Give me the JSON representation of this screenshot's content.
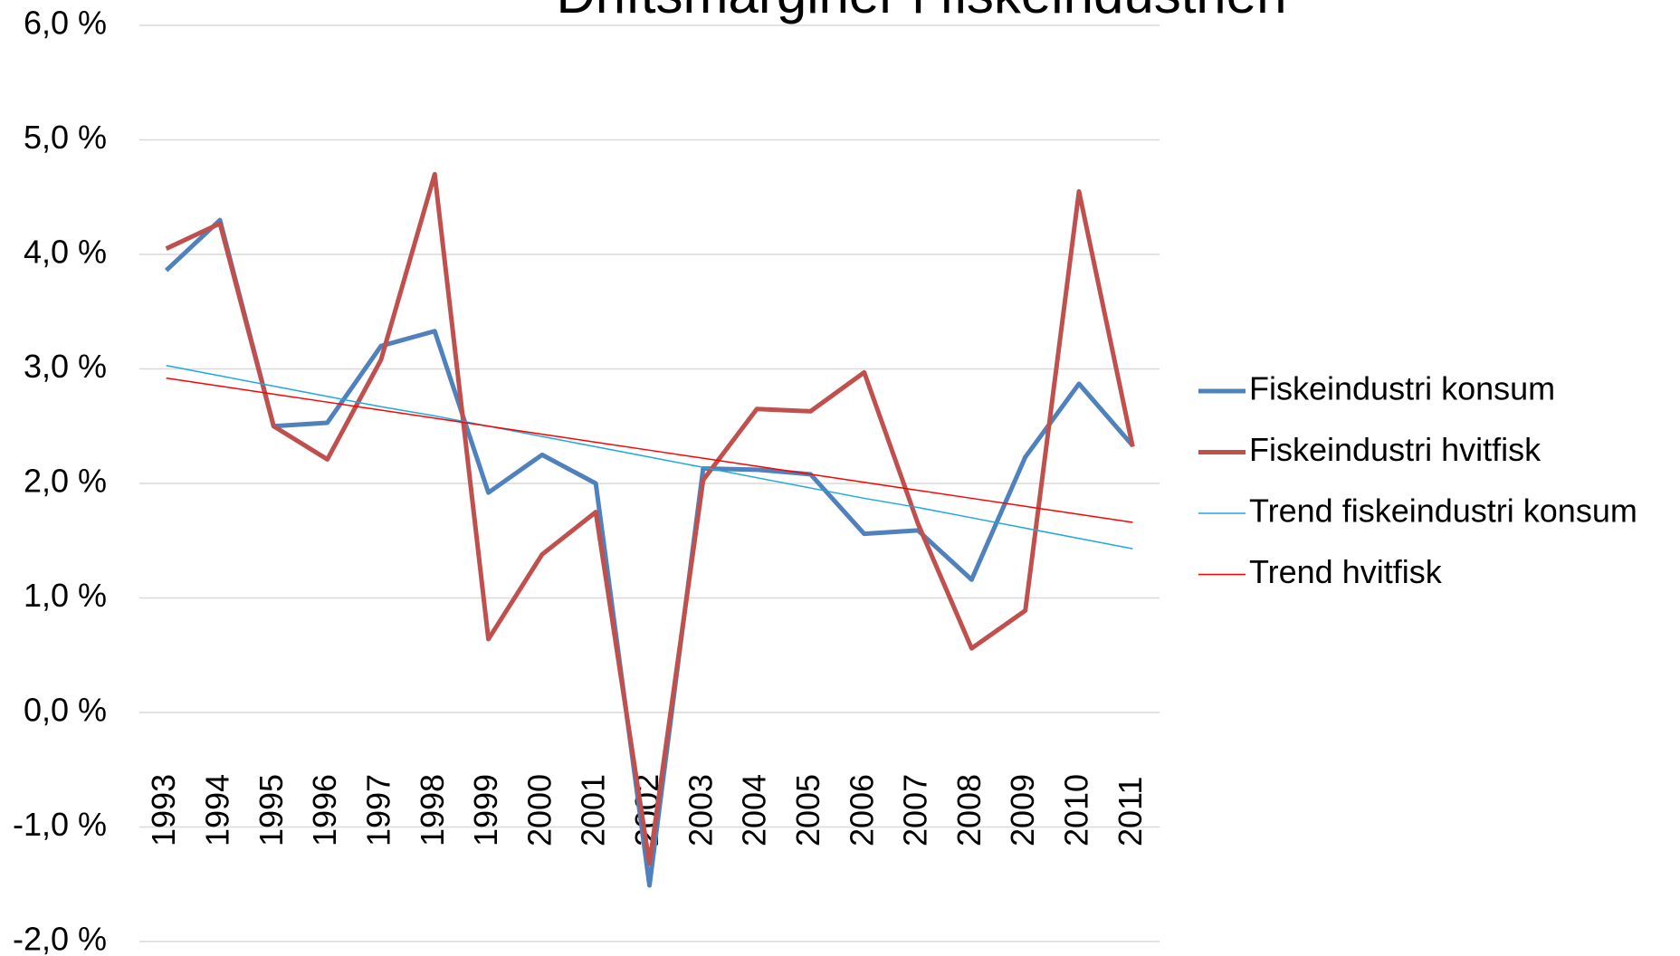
{
  "chart_data": {
    "type": "line",
    "title": "Driftsmarginer i fiskeindustrien",
    "categories": [
      "1993",
      "1994",
      "1995",
      "1996",
      "1997",
      "1998",
      "1999",
      "2000",
      "2001",
      "2002",
      "2003",
      "2004",
      "2005",
      "2006",
      "2007",
      "2008",
      "2009",
      "2010",
      "2011"
    ],
    "series": [
      {
        "name": "Fiskeindustri konsum",
        "color": "#4f81bd",
        "width": 5,
        "values": [
          3.86,
          4.3,
          2.5,
          2.53,
          3.2,
          3.33,
          1.92,
          2.25,
          2.0,
          -1.51,
          2.13,
          2.12,
          2.08,
          1.56,
          1.59,
          1.16,
          2.23,
          2.87,
          2.33
        ]
      },
      {
        "name": "Fiskeindustri hvitfisk",
        "color": "#c0504d",
        "width": 5,
        "values": [
          4.05,
          4.27,
          2.5,
          2.21,
          3.08,
          4.7,
          0.64,
          1.38,
          1.75,
          -1.32,
          2.03,
          2.65,
          2.63,
          2.97,
          1.65,
          0.56,
          0.89,
          4.55,
          2.32
        ]
      },
      {
        "name": "Trend fiskeindustri konsum",
        "color": "#1fa8e0",
        "width": 1.5,
        "values": [
          3.03,
          2.94,
          2.85,
          2.76,
          2.67,
          2.59,
          2.5,
          2.41,
          2.32,
          2.23,
          2.14,
          2.05,
          1.96,
          1.87,
          1.79,
          1.7,
          1.61,
          1.52,
          1.43
        ]
      },
      {
        "name": "Trend hvitfisk",
        "color": "#ff0000",
        "width": 1.5,
        "values": [
          2.92,
          2.85,
          2.78,
          2.71,
          2.64,
          2.57,
          2.5,
          2.43,
          2.36,
          2.29,
          2.22,
          2.15,
          2.08,
          2.01,
          1.94,
          1.87,
          1.8,
          1.73,
          1.66
        ]
      }
    ],
    "ylim": [
      -2,
      6
    ],
    "yticks": [
      {
        "value": -2,
        "label": "-2,0 %"
      },
      {
        "value": -1,
        "label": "-1,0 %"
      },
      {
        "value": 0,
        "label": "0,0 %"
      },
      {
        "value": 1,
        "label": "1,0 %"
      },
      {
        "value": 2,
        "label": "2,0 %"
      },
      {
        "value": 3,
        "label": "3,0 %"
      },
      {
        "value": 4,
        "label": "4,0 %"
      },
      {
        "value": 5,
        "label": "5,0 %"
      },
      {
        "value": 6,
        "label": "6,0 %"
      }
    ],
    "grid": true,
    "legend": "right"
  }
}
